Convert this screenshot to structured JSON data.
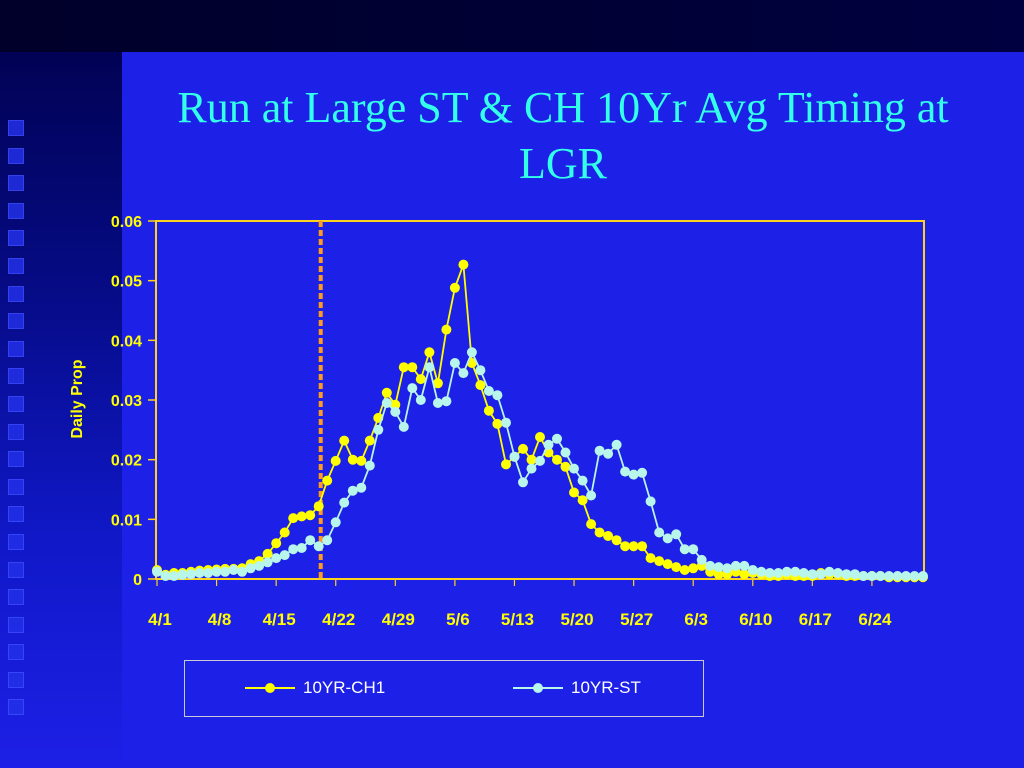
{
  "slide": {
    "title": "Run at Large ST & CH 10Yr Avg Timing at LGR"
  },
  "colors": {
    "background": "#1d20e6",
    "title": "#33ffe8",
    "axis_text": "#ffff00",
    "plot_border": "#ffd21e",
    "series_ch1": "#ffff00",
    "series_st": "#b8f5ea",
    "marker_line": "#ff9a1e"
  },
  "chart_data": {
    "type": "line",
    "ylabel": "Daily Prop",
    "xlabel": "",
    "ylim": [
      0,
      0.06
    ],
    "y_ticks": [
      "0",
      "0.01",
      "0.02",
      "0.03",
      "0.04",
      "0.05",
      "0.06"
    ],
    "x_tick_labels": [
      "4/1",
      "4/8",
      "4/15",
      "4/22",
      "4/29",
      "5/6",
      "5/13",
      "5/20",
      "5/27",
      "6/3",
      "6/10",
      "6/17",
      "6/24"
    ],
    "x": [
      "4/1",
      "4/2",
      "4/3",
      "4/4",
      "4/5",
      "4/6",
      "4/7",
      "4/8",
      "4/9",
      "4/10",
      "4/11",
      "4/12",
      "4/13",
      "4/14",
      "4/15",
      "4/16",
      "4/17",
      "4/18",
      "4/19",
      "4/20",
      "4/21",
      "4/22",
      "4/23",
      "4/24",
      "4/25",
      "4/26",
      "4/27",
      "4/28",
      "4/29",
      "4/30",
      "5/1",
      "5/2",
      "5/3",
      "5/4",
      "5/5",
      "5/6",
      "5/7",
      "5/8",
      "5/9",
      "5/10",
      "5/11",
      "5/12",
      "5/13",
      "5/14",
      "5/15",
      "5/16",
      "5/17",
      "5/18",
      "5/19",
      "5/20",
      "5/21",
      "5/22",
      "5/23",
      "5/24",
      "5/25",
      "5/26",
      "5/27",
      "5/28",
      "5/29",
      "5/30",
      "5/31",
      "6/1",
      "6/2",
      "6/3",
      "6/4",
      "6/5",
      "6/6",
      "6/7",
      "6/8",
      "6/9",
      "6/10",
      "6/11",
      "6/12",
      "6/13",
      "6/14",
      "6/15",
      "6/16",
      "6/17",
      "6/18",
      "6/19",
      "6/20",
      "6/21",
      "6/22",
      "6/23",
      "6/24",
      "6/25",
      "6/26",
      "6/27",
      "6/28",
      "6/29",
      "6/30"
    ],
    "vertical_marker": {
      "x": "4/20",
      "style": "dashed"
    },
    "grid": false,
    "legend_position": "bottom",
    "series": [
      {
        "name": "10YR-CH1",
        "values": [
          0.0015,
          0.0007,
          0.001,
          0.001,
          0.0012,
          0.0014,
          0.0015,
          0.0016,
          0.0017,
          0.0017,
          0.0018,
          0.0025,
          0.003,
          0.0042,
          0.006,
          0.0078,
          0.0102,
          0.0105,
          0.0107,
          0.0122,
          0.0165,
          0.0198,
          0.0232,
          0.02,
          0.0198,
          0.0232,
          0.027,
          0.0312,
          0.0292,
          0.0355,
          0.0355,
          0.0335,
          0.038,
          0.0328,
          0.0418,
          0.0488,
          0.0527,
          0.0362,
          0.0325,
          0.0282,
          0.026,
          0.0192,
          0.0205,
          0.0218,
          0.02,
          0.0238,
          0.0212,
          0.02,
          0.0188,
          0.0145,
          0.0132,
          0.0092,
          0.0078,
          0.0072,
          0.0065,
          0.0055,
          0.0055,
          0.0055,
          0.0035,
          0.003,
          0.0025,
          0.002,
          0.0015,
          0.0018,
          0.0022,
          0.0012,
          0.0008,
          0.0008,
          0.0012,
          0.0008,
          0.001,
          0.0008,
          0.0005,
          0.0005,
          0.0008,
          0.0005,
          0.0005,
          0.0005,
          0.001,
          0.0008,
          0.0008,
          0.0005,
          0.0005,
          0.0005,
          0.0005,
          0.0005,
          0.0003,
          0.0003,
          0.0003,
          0.0003,
          0.0003
        ]
      },
      {
        "name": "10YR-ST",
        "values": [
          0.0012,
          0.0005,
          0.0005,
          0.0007,
          0.0008,
          0.001,
          0.001,
          0.0012,
          0.0012,
          0.0015,
          0.0012,
          0.0018,
          0.0022,
          0.0028,
          0.0035,
          0.004,
          0.005,
          0.0052,
          0.0065,
          0.0055,
          0.0065,
          0.0095,
          0.0128,
          0.0148,
          0.0153,
          0.019,
          0.025,
          0.0295,
          0.028,
          0.0255,
          0.032,
          0.03,
          0.0355,
          0.0295,
          0.0298,
          0.0362,
          0.0345,
          0.038,
          0.035,
          0.0315,
          0.0308,
          0.0262,
          0.0205,
          0.0162,
          0.0185,
          0.0198,
          0.0225,
          0.0235,
          0.0212,
          0.0185,
          0.0165,
          0.014,
          0.0215,
          0.021,
          0.0225,
          0.018,
          0.0175,
          0.0178,
          0.013,
          0.0078,
          0.0068,
          0.0075,
          0.005,
          0.005,
          0.0032,
          0.0022,
          0.002,
          0.0018,
          0.0022,
          0.0022,
          0.0015,
          0.0012,
          0.001,
          0.001,
          0.0012,
          0.0012,
          0.001,
          0.0008,
          0.0008,
          0.0012,
          0.001,
          0.0008,
          0.0008,
          0.0005,
          0.0005,
          0.0005,
          0.0005,
          0.0005,
          0.0005,
          0.0005,
          0.0005
        ]
      }
    ]
  }
}
